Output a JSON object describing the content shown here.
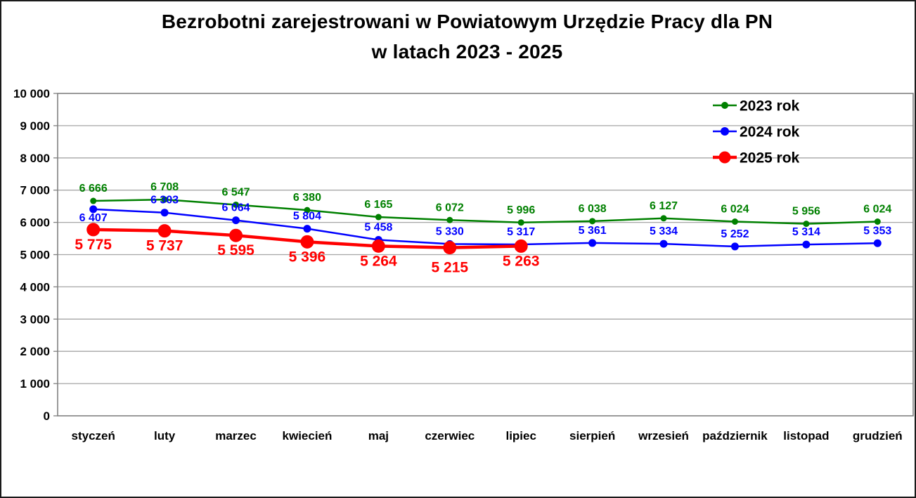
{
  "title": {
    "line1": "Bezrobotni zarejestrowani w Powiatowym Urzędzie Pracy dla PN",
    "line2": "w latach 2023 - 2025"
  },
  "chart_data": {
    "type": "line",
    "title": "Bezrobotni zarejestrowani w Powiatowym Urzędzie Pracy dla PN w latach 2023 - 2025",
    "categories": [
      "styczeń",
      "luty",
      "marzec",
      "kwiecień",
      "maj",
      "czerwiec",
      "lipiec",
      "sierpień",
      "wrzesień",
      "październik",
      "listopad",
      "grudzień"
    ],
    "series": [
      {
        "name": "2023 rok",
        "color": "#008000",
        "values": [
          6666,
          6708,
          6547,
          6380,
          6165,
          6072,
          5996,
          6038,
          6127,
          6024,
          5956,
          6024
        ],
        "line_width": 2.5,
        "marker_radius": 4.5,
        "label_position": "above",
        "label_font_size": 16,
        "label_offset_overrides": {}
      },
      {
        "name": "2024 rok",
        "color": "#0000ff",
        "values": [
          6407,
          6303,
          6064,
          5804,
          5458,
          5330,
          5317,
          5361,
          5334,
          5252,
          5314,
          5353
        ],
        "line_width": 2.5,
        "marker_radius": 5.5,
        "label_position": "above",
        "label_font_size": 16,
        "label_offset_overrides": {
          "0": 17
        }
      },
      {
        "name": "2025 rok",
        "color": "#ff0000",
        "values": [
          5775,
          5737,
          5595,
          5396,
          5264,
          5215,
          5263
        ],
        "line_width": 4.5,
        "marker_radius": 9.5,
        "label_position": "below",
        "label_font_size": 21,
        "label_offset_overrides": {
          "5": 35
        }
      }
    ],
    "ylim": [
      0,
      10000
    ],
    "ytick_step": 1000,
    "grid": true,
    "legend_position": "top-right",
    "xlabel": "",
    "ylabel": "",
    "thousands_separator": " ",
    "grid_color": "#a6a6a6",
    "border_color": "#808080",
    "text_color": "#000000"
  }
}
